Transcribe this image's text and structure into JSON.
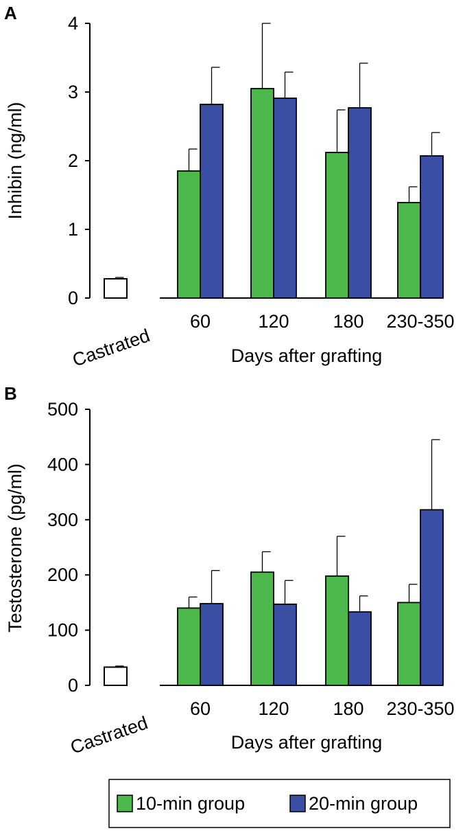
{
  "colors": {
    "group10": "#4cb84c",
    "group20": "#3a4ea4",
    "castrated": "#ffffff",
    "axis": "#000000"
  },
  "chart_data": [
    {
      "panel": "A",
      "type": "bar",
      "ylabel": "Inhibin (ng/ml)",
      "xlabel": "Days after grafting",
      "ylim": [
        0,
        4
      ],
      "yticks": [
        0,
        1,
        2,
        3,
        4
      ],
      "yticklabels": [
        "0",
        "1",
        "2",
        "3",
        "4"
      ],
      "control": {
        "label": "Castrated",
        "value": 0.28,
        "error": 0.02
      },
      "categories": [
        "60",
        "120",
        "180",
        "230-350"
      ],
      "series": [
        {
          "name": "10-min group",
          "values": [
            1.85,
            3.05,
            2.12,
            1.39
          ],
          "errors": [
            0.32,
            0.95,
            0.62,
            0.23
          ]
        },
        {
          "name": "20-min group",
          "values": [
            2.82,
            2.91,
            2.77,
            2.07
          ],
          "errors": [
            0.54,
            0.38,
            0.65,
            0.34
          ]
        }
      ]
    },
    {
      "panel": "B",
      "type": "bar",
      "ylabel": "Testosterone (pg/ml)",
      "xlabel": "Days after grafting",
      "ylim": [
        0,
        500
      ],
      "yticks": [
        0,
        100,
        200,
        300,
        400,
        500
      ],
      "yticklabels": [
        "0",
        "100",
        "200",
        "300",
        "400",
        "500"
      ],
      "control": {
        "label": "Castrated",
        "value": 33,
        "error": 2
      },
      "categories": [
        "60",
        "120",
        "180",
        "230-350"
      ],
      "series": [
        {
          "name": "10-min group",
          "values": [
            140,
            205,
            198,
            150
          ],
          "errors": [
            20,
            37,
            72,
            33
          ]
        },
        {
          "name": "20-min group",
          "values": [
            148,
            147,
            133,
            318
          ],
          "errors": [
            60,
            43,
            29,
            127
          ]
        }
      ]
    }
  ],
  "legend": [
    {
      "label": "10-min group"
    },
    {
      "label": "20-min group"
    }
  ]
}
